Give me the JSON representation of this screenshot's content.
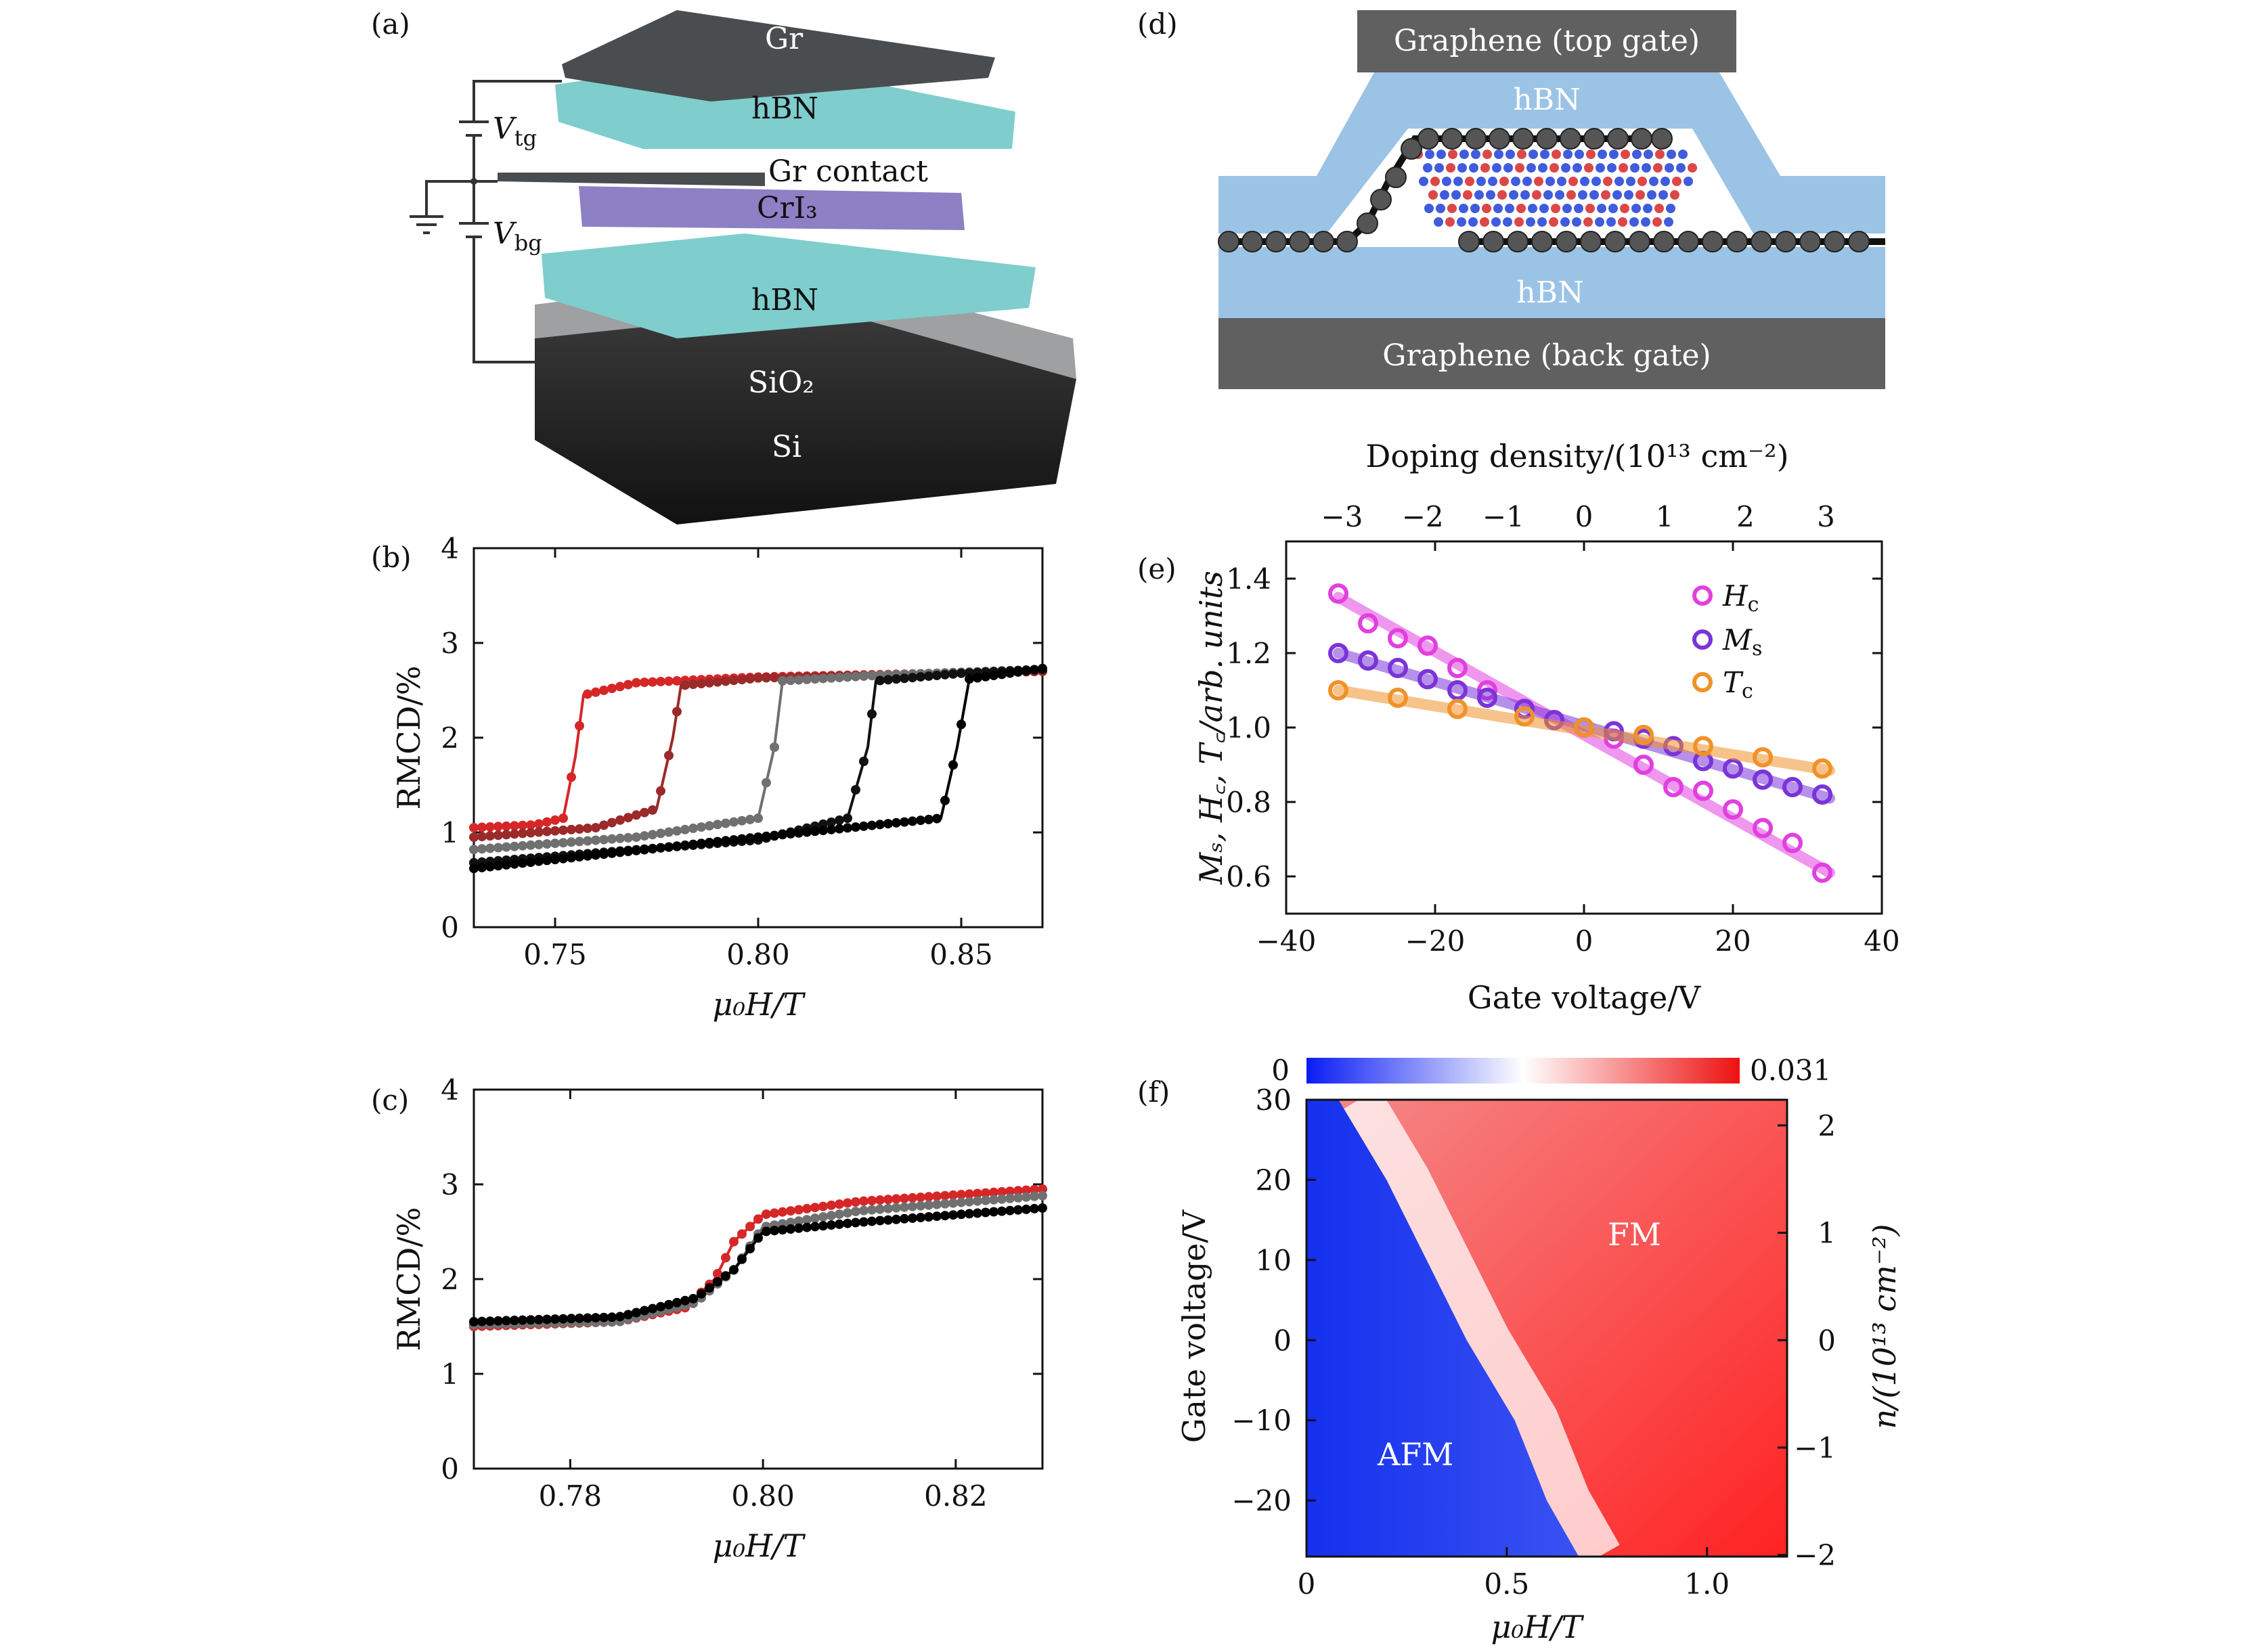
{
  "panels": {
    "a": {
      "label": "(a)",
      "layers": [
        "Gr",
        "hBN",
        "Gr contact",
        "CrI₃",
        "hBN",
        "SiO₂",
        "Si"
      ],
      "voltages": {
        "top": "V",
        "top_sub": "tg",
        "bottom": "V",
        "bottom_sub": "bg"
      },
      "colors": {
        "graphene": "#4a4d4f",
        "hbn": "#7fcdcd",
        "cri3": "#8e80c4",
        "sio2": "#7d7f80",
        "si": "#2a2a2a"
      }
    },
    "d": {
      "label": "(d)",
      "top_gate": "Graphene (top gate)",
      "hbn_top": "hBN",
      "hbn_bottom": "hBN",
      "back_gate": "Graphene (back gate)",
      "colors": {
        "gate": "#606060",
        "hbn": "#9bc3e6",
        "atom_red": "#d62728",
        "atom_blue": "#1f3fd6"
      }
    },
    "b": {
      "label": "(b)",
      "xlabel": "μ₀H/T",
      "ylabel": "RMCD/%"
    },
    "c": {
      "label": "(c)",
      "xlabel": "μ₀H/T",
      "ylabel": "RMCD/%"
    },
    "e": {
      "label": "(e)",
      "xlabel": "Gate voltage/V",
      "ylabel": "Mₛ, H꜀, T꜀/arb. units",
      "top_label": "Doping density/(10¹³ cm⁻²)",
      "legend": [
        "H",
        "M",
        "T"
      ],
      "legend_subs": [
        "c",
        "s",
        "c"
      ]
    },
    "f": {
      "label": "(f)",
      "xlabel": "μ₀H/T",
      "ylabel": "Gate voltage/V",
      "right_label": "n/(10¹³ cm⁻²)",
      "cbar_min": "0",
      "cbar_max": "0.031",
      "region_afm": "AFM",
      "region_fm": "FM"
    }
  },
  "chart_data": [
    {
      "id": "b",
      "type": "line",
      "xlabel": "μ₀H/T",
      "ylabel": "RMCD/%",
      "xlim": [
        0.73,
        0.87
      ],
      "ylim": [
        0,
        4
      ],
      "xticks": [
        "0.75",
        "0.80",
        "0.85"
      ],
      "yticks": [
        "0",
        "1",
        "2",
        "3",
        "4"
      ],
      "series": [
        {
          "color": "#d62728",
          "values": [
            [
              0.73,
              1.05
            ],
            [
              0.745,
              1.08
            ],
            [
              0.752,
              1.15
            ],
            [
              0.755,
              1.8
            ],
            [
              0.757,
              2.45
            ],
            [
              0.77,
              2.58
            ],
            [
              0.8,
              2.64
            ],
            [
              0.87,
              2.7
            ]
          ]
        },
        {
          "color": "#9b2a2a",
          "values": [
            [
              0.73,
              0.95
            ],
            [
              0.76,
              1.05
            ],
            [
              0.775,
              1.25
            ],
            [
              0.779,
              2.0
            ],
            [
              0.781,
              2.55
            ],
            [
              0.8,
              2.63
            ],
            [
              0.87,
              2.7
            ]
          ]
        },
        {
          "color": "#707070",
          "values": [
            [
              0.73,
              0.82
            ],
            [
              0.77,
              0.95
            ],
            [
              0.8,
              1.15
            ],
            [
              0.804,
              1.9
            ],
            [
              0.806,
              2.6
            ],
            [
              0.83,
              2.66
            ],
            [
              0.87,
              2.72
            ]
          ]
        },
        {
          "color": "#111111",
          "values": [
            [
              0.73,
              0.68
            ],
            [
              0.8,
              0.92
            ],
            [
              0.822,
              1.15
            ],
            [
              0.827,
              1.9
            ],
            [
              0.829,
              2.6
            ],
            [
              0.85,
              2.68
            ],
            [
              0.87,
              2.72
            ]
          ]
        },
        {
          "color": "#000000",
          "values": [
            [
              0.73,
              0.62
            ],
            [
              0.8,
              0.95
            ],
            [
              0.845,
              1.15
            ],
            [
              0.849,
              1.9
            ],
            [
              0.852,
              2.62
            ],
            [
              0.87,
              2.73
            ]
          ]
        }
      ]
    },
    {
      "id": "c",
      "type": "line",
      "xlabel": "μ₀H/T",
      "ylabel": "RMCD/%",
      "xlim": [
        0.77,
        0.829
      ],
      "ylim": [
        0,
        4
      ],
      "xticks": [
        "0.78",
        "0.80",
        "0.82"
      ],
      "yticks": [
        "0",
        "1",
        "2",
        "3",
        "4"
      ],
      "series": [
        {
          "color": "#d62728",
          "values": [
            [
              0.77,
              1.5
            ],
            [
              0.785,
              1.55
            ],
            [
              0.792,
              1.7
            ],
            [
              0.795,
              2.0
            ],
            [
              0.797,
              2.4
            ],
            [
              0.8,
              2.68
            ],
            [
              0.81,
              2.82
            ],
            [
              0.829,
              2.95
            ]
          ]
        },
        {
          "color": "#707070",
          "values": [
            [
              0.77,
              1.52
            ],
            [
              0.785,
              1.55
            ],
            [
              0.793,
              1.75
            ],
            [
              0.797,
              2.1
            ],
            [
              0.8,
              2.55
            ],
            [
              0.81,
              2.72
            ],
            [
              0.829,
              2.88
            ]
          ]
        },
        {
          "color": "#000000",
          "values": [
            [
              0.77,
              1.55
            ],
            [
              0.785,
              1.6
            ],
            [
              0.793,
              1.8
            ],
            [
              0.797,
              2.1
            ],
            [
              0.8,
              2.5
            ],
            [
              0.81,
              2.6
            ],
            [
              0.829,
              2.75
            ]
          ]
        }
      ]
    },
    {
      "id": "e",
      "type": "scatter",
      "xlabel": "Gate voltage/V",
      "ylabel": "Mₛ, H꜀, T꜀/arb. units",
      "xlim": [
        -40,
        40
      ],
      "ylim": [
        0.5,
        1.5
      ],
      "xticks": [
        "−40",
        "−20",
        "0",
        "20",
        "40"
      ],
      "yticks": [
        "0.6",
        "0.8",
        "1.0",
        "1.2",
        "1.4"
      ],
      "top_ticks": [
        "−3",
        "−2",
        "−1",
        "0",
        "1",
        "2",
        "3"
      ],
      "series": [
        {
          "name": "Hc",
          "color": "#e23fe0",
          "fit": [
            [
              -33,
              1.35
            ],
            [
              33,
              0.61
            ]
          ],
          "points": [
            [
              -33,
              1.36
            ],
            [
              -29,
              1.28
            ],
            [
              -25,
              1.24
            ],
            [
              -21,
              1.22
            ],
            [
              -17,
              1.16
            ],
            [
              -13,
              1.1
            ],
            [
              -8,
              1.05
            ],
            [
              -4,
              1.02
            ],
            [
              0,
              1.0
            ],
            [
              4,
              0.97
            ],
            [
              8,
              0.9
            ],
            [
              12,
              0.84
            ],
            [
              16,
              0.83
            ],
            [
              20,
              0.78
            ],
            [
              24,
              0.73
            ],
            [
              28,
              0.69
            ],
            [
              32,
              0.61
            ]
          ]
        },
        {
          "name": "Ms",
          "color": "#7a34d8",
          "fit": [
            [
              -33,
              1.2
            ],
            [
              33,
              0.81
            ]
          ],
          "points": [
            [
              -33,
              1.2
            ],
            [
              -29,
              1.18
            ],
            [
              -25,
              1.16
            ],
            [
              -21,
              1.13
            ],
            [
              -17,
              1.1
            ],
            [
              -13,
              1.08
            ],
            [
              -8,
              1.05
            ],
            [
              -4,
              1.02
            ],
            [
              0,
              1.0
            ],
            [
              4,
              0.99
            ],
            [
              8,
              0.97
            ],
            [
              12,
              0.95
            ],
            [
              16,
              0.91
            ],
            [
              20,
              0.89
            ],
            [
              24,
              0.86
            ],
            [
              28,
              0.84
            ],
            [
              32,
              0.82
            ]
          ]
        },
        {
          "name": "Tc",
          "color": "#f0922a",
          "fit": [
            [
              -33,
              1.1
            ],
            [
              33,
              0.885
            ]
          ],
          "points": [
            [
              -33,
              1.1
            ],
            [
              -25,
              1.08
            ],
            [
              -17,
              1.05
            ],
            [
              -8,
              1.03
            ],
            [
              0,
              1.0
            ],
            [
              8,
              0.98
            ],
            [
              16,
              0.95
            ],
            [
              24,
              0.92
            ],
            [
              32,
              0.89
            ]
          ]
        }
      ]
    },
    {
      "id": "f",
      "type": "heatmap",
      "xlabel": "μ₀H/T",
      "ylabel": "Gate voltage/V",
      "xlim": [
        0,
        1.2
      ],
      "ylim": [
        -27,
        30
      ],
      "xticks": [
        "0",
        "0.5",
        "1.0"
      ],
      "yticks": [
        "−20",
        "−10",
        "0",
        "10",
        "20",
        "30"
      ],
      "right_ticks": [
        "−2",
        "−1",
        "0",
        "1",
        "2"
      ],
      "colorbar": {
        "min": 0,
        "max": 0.031,
        "colors": [
          "#0a1cf5",
          "#ffffff",
          "#ee1111"
        ]
      },
      "boundary": [
        [
          0.08,
          30
        ],
        [
          0.2,
          20
        ],
        [
          0.3,
          10
        ],
        [
          0.4,
          0
        ],
        [
          0.52,
          -10
        ],
        [
          0.6,
          -20
        ],
        [
          0.68,
          -27
        ]
      ]
    }
  ]
}
